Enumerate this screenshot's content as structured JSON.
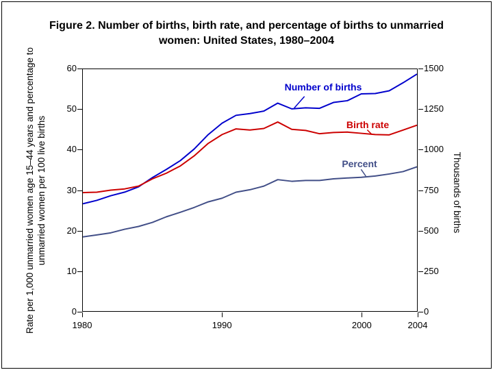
{
  "chart_data": {
    "type": "line",
    "title": "Figure 2. Number of births, birth rate, and percentage of births to unmarried women: United States, 1980–2004",
    "xlabel": "",
    "grid": false,
    "legend_position": "inline-labels",
    "x": [
      1980,
      1981,
      1982,
      1983,
      1984,
      1985,
      1986,
      1987,
      1988,
      1989,
      1990,
      1991,
      1992,
      1993,
      1994,
      1995,
      1996,
      1997,
      1998,
      1999,
      2000,
      2001,
      2002,
      2003,
      2004
    ],
    "x_axis": {
      "range": [
        1980,
        2004
      ],
      "ticks": [
        1980,
        1990,
        2000,
        2004
      ]
    },
    "left_axis": {
      "label": "Rate per 1,000 unmarried women age 15–44 years and percentage to unmarried women per 100 live births",
      "range": [
        0,
        60
      ],
      "ticks": [
        0,
        10,
        20,
        30,
        40,
        50,
        60
      ]
    },
    "right_axis": {
      "label": "Thousands of births",
      "range": [
        0,
        1500
      ],
      "ticks": [
        0,
        250,
        500,
        750,
        1000,
        1250,
        1500
      ]
    },
    "series": [
      {
        "id": "number-of-births",
        "name": "Number of births",
        "axis": "right",
        "unit": "thousands",
        "color": "#0000cc",
        "values": [
          665.7,
          686.6,
          715.2,
          737.9,
          770.4,
          828.2,
          878.5,
          933.0,
          1005.3,
          1094.2,
          1165.4,
          1213.8,
          1224.9,
          1240.2,
          1289.6,
          1253.9,
          1260.3,
          1257.4,
          1293.6,
          1304.6,
          1347.0,
          1349.2,
          1365.9,
          1415.8,
          1470.2
        ]
      },
      {
        "id": "birth-rate",
        "name": "Birth rate",
        "axis": "left",
        "unit": "rate per 1,000 unmarried women age 15–44 years",
        "color": "#cc0000",
        "values": [
          29.4,
          29.5,
          30.0,
          30.3,
          31.0,
          32.8,
          34.2,
          36.0,
          38.5,
          41.6,
          43.8,
          45.2,
          44.9,
          45.3,
          46.9,
          45.1,
          44.8,
          44.0,
          44.3,
          44.4,
          44.1,
          43.8,
          43.7,
          44.9,
          46.1
        ]
      },
      {
        "id": "percent",
        "name": "Percent",
        "axis": "left",
        "unit": "percent of births to unmarried women per 100 live births",
        "color": "#414e87",
        "values": [
          18.4,
          18.9,
          19.4,
          20.3,
          21.0,
          22.0,
          23.4,
          24.5,
          25.7,
          27.1,
          28.0,
          29.5,
          30.1,
          31.0,
          32.6,
          32.2,
          32.4,
          32.4,
          32.8,
          33.0,
          33.2,
          33.5,
          34.0,
          34.6,
          35.8
        ]
      }
    ]
  }
}
